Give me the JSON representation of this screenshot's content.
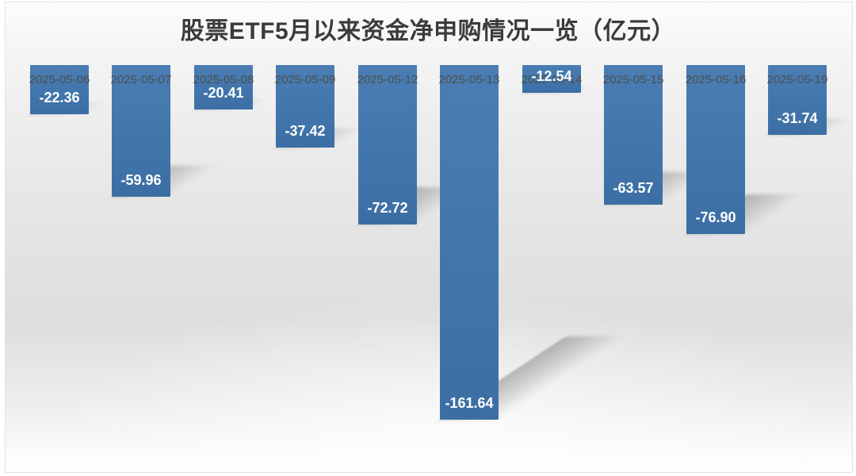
{
  "chart_data": {
    "type": "bar",
    "title": "股票ETF5月以来资金净申购情况一览（亿元）",
    "categories": [
      "2025-05-06",
      "2025-05-07",
      "2025-05-08",
      "2025-05-09",
      "2025-05-12",
      "2025-05-13",
      "2025-05-14",
      "2025-05-15",
      "2025-05-16",
      "2025-05-19"
    ],
    "values": [
      -22.36,
      -59.96,
      -20.41,
      -37.42,
      -72.72,
      -161.64,
      -12.54,
      -63.57,
      -76.9,
      -31.74
    ],
    "value_labels": [
      "-22.36",
      "-59.96",
      "-20.41",
      "-37.42",
      "-72.72",
      "-161.64",
      "-12.54",
      "-63.57",
      "-76.90",
      "-31.74"
    ],
    "xlabel": "",
    "ylabel": "",
    "ylim": [
      -170,
      0
    ],
    "grid": false,
    "legend": false,
    "value_label_position": "inside-end",
    "category_label_position": "zero-line",
    "colors": {
      "bar": "#4176ac",
      "bar_top": "#4a7db3",
      "bar_bottom": "#3c6ea4",
      "value_label": "#ffffff",
      "category_label": "#4e4e4e",
      "title": "#3b3b3b"
    }
  }
}
